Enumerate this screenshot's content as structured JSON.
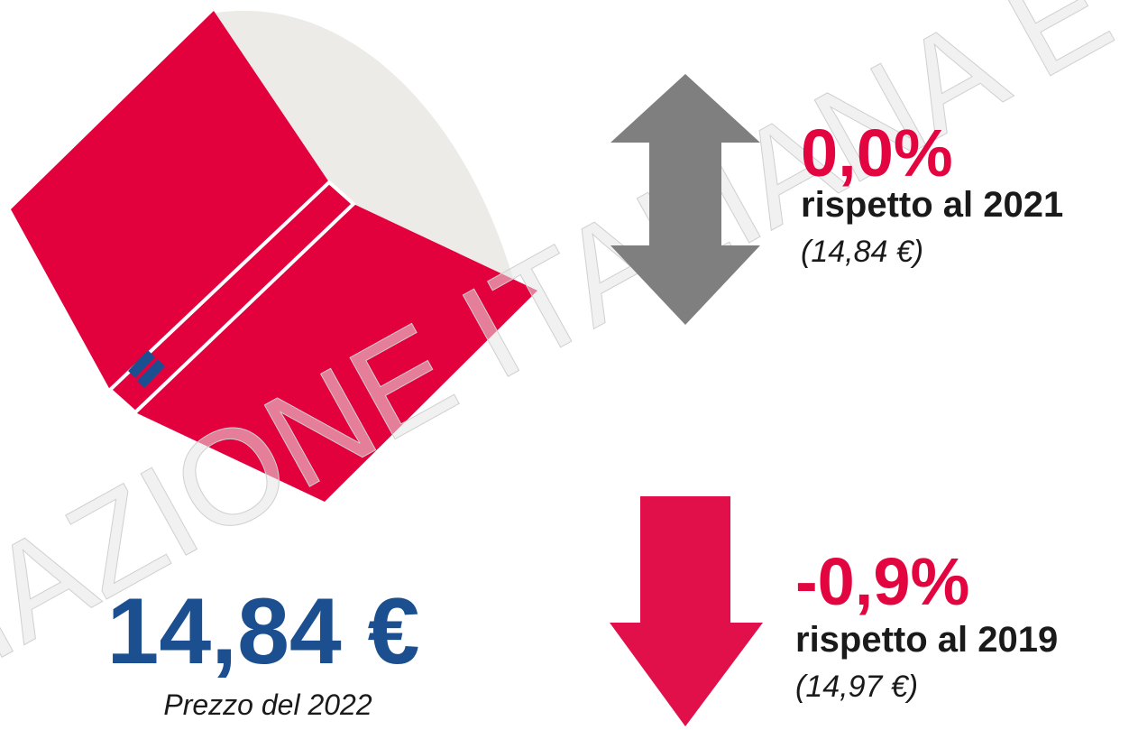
{
  "watermark": "IAZIONE ITALIANA E",
  "price": {
    "value": "14,84 €",
    "caption": "Prezzo del 2022"
  },
  "comparisons": [
    {
      "change": "0,0%",
      "label": "rispetto al 2021",
      "reference": "(14,84 €)"
    },
    {
      "change": "-0,9%",
      "label": "rispetto al 2019",
      "reference": "(14,97 €)"
    }
  ]
}
